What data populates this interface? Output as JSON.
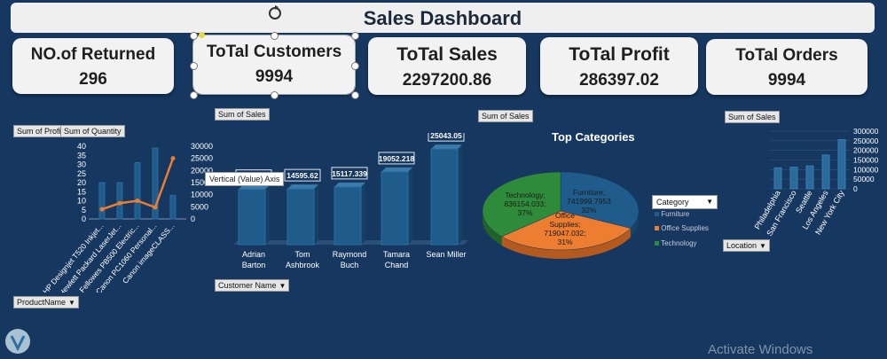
{
  "dashboard": {
    "title": "Sales Dashboard"
  },
  "kpis": [
    {
      "label": "NO.of Returned",
      "value": "296"
    },
    {
      "label": "ToTal Customers",
      "value": "9994"
    },
    {
      "label": "ToTal Sales",
      "value": "2297200.86"
    },
    {
      "label": "ToTal Profit",
      "value": "286397.02"
    },
    {
      "label": "ToTal Orders",
      "value": "9994"
    }
  ],
  "pivot_tags": {
    "sum_of_sales_1": "Sum of Sales",
    "sum_of_sales_2": "Sum of Sales",
    "sum_of_sales_3": "Sum of Sales",
    "sum_of_profit": "Sum of Profit",
    "sum_of_quantity": "Sum of Quantity",
    "product_name": "ProductName",
    "customer_name": "Customer Name",
    "location": "Location",
    "category": "Category"
  },
  "tooltip": "Vertical (Value) Axis",
  "pie": {
    "title": "Top Categories"
  },
  "legend_items": [
    "Furniture",
    "Office Supplies",
    "Technology"
  ],
  "watermark": "Activate Windows",
  "colors": {
    "background": "#16375f",
    "bar": "#1f5c8b",
    "line": "#ed7d31",
    "tech": "#2e8b3a",
    "office": "#ed7d31",
    "furniture": "#1f5c8b"
  },
  "chart_data": [
    {
      "type": "bar",
      "name": "product_combo",
      "categories": [
        "HP Designjet T520 Inkjet...",
        "Hewlett Packard LaserJet...",
        "Fellowes PB500 Electric...",
        "Canon PC1060 Personal...",
        "Canon imageCLASS..."
      ],
      "category_labels": [
        "HP Designjet T520 Inkjet...",
        "Hewlett Packard LaserJet...",
        "Fellowes PB500 Electric...",
        "Canon PC1060 Personal...",
        "Canon imageCLASS..."
      ],
      "series": [
        {
          "name": "Sum of Quantity",
          "kind": "bar",
          "axis": "left",
          "values": [
            20,
            20,
            31,
            39,
            13
          ]
        },
        {
          "name": "Sum of Profit",
          "kind": "line",
          "axis": "right",
          "values": [
            4000,
            6500,
            7500,
            4800,
            25000
          ]
        }
      ],
      "left_ticks": [
        "40",
        "35",
        "30",
        "25",
        "20",
        "15",
        "10",
        "5",
        "0"
      ],
      "right_ticks": [
        "30000",
        "25000",
        "20000",
        "15000",
        "10000",
        "5000",
        "0"
      ],
      "ylim_left": [
        0,
        40
      ],
      "ylim_right": [
        0,
        30000
      ]
    },
    {
      "type": "bar",
      "name": "top_customers",
      "categories": [
        "Adrian Barton",
        "Tom Ashbrook",
        "Raymond Buch",
        "Tamara Chand",
        "Sean Miller"
      ],
      "category_lines": [
        [
          "Adrian",
          "Barton"
        ],
        [
          "Tom",
          "Ashbrook"
        ],
        [
          "Raymond",
          "Buch"
        ],
        [
          "Tamara",
          "Chand"
        ],
        [
          "Sean Miller"
        ]
      ],
      "values": [
        14473.571,
        14595.62,
        15117.339,
        19052.218,
        25043.05
      ],
      "value_labels": [
        "14473.571",
        "14595.62",
        "15117.339",
        "19052.218",
        "25043.05"
      ]
    },
    {
      "type": "pie",
      "name": "top_categories",
      "title": "Top Categories",
      "slices": [
        {
          "label": "Furniture",
          "value": 741999.7953,
          "pct": "32%",
          "line1": "Furniture;",
          "line2": "741999.7953",
          "line3": "32%"
        },
        {
          "label": "Office Supplies",
          "value": 719047.032,
          "pct": "31%",
          "line1": "Office",
          "line2": "Supplies;",
          "line3": "719047.032;",
          "line4": "31%"
        },
        {
          "label": "Technology",
          "value": 836154.033,
          "pct": "37%",
          "line1": "Technology;",
          "line2": "836154.033;",
          "line3": "37%"
        }
      ]
    },
    {
      "type": "bar",
      "name": "sales_by_city",
      "categories": [
        "Philadelphia",
        "San Francisco",
        "Seattle",
        "Los Angeles",
        "New York City"
      ],
      "values": [
        109077,
        112669,
        119541,
        175851,
        256368
      ],
      "ticks": [
        "300000",
        "250000",
        "200000",
        "150000",
        "100000",
        "50000",
        "0"
      ],
      "ylim": [
        0,
        300000
      ]
    }
  ]
}
